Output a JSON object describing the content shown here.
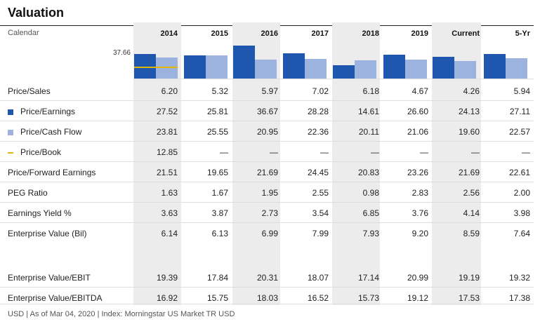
{
  "title": "Valuation",
  "calendar_label": "Calendar",
  "columns": [
    "2014",
    "2015",
    "2016",
    "2017",
    "2018",
    "2019",
    "Current",
    "5-Yr"
  ],
  "chart_max_label": "37.66",
  "colors": {
    "pe": "#1f56ae",
    "pcf": "#9db3df",
    "pb": "#e3b400",
    "shade": "#ececec"
  },
  "chart_data": {
    "type": "bar",
    "categories": [
      "2014",
      "2015",
      "2016",
      "2017",
      "2018",
      "2019",
      "Current",
      "5-Yr"
    ],
    "ymax": 37.66,
    "series": [
      {
        "name": "Price/Earnings",
        "values": [
          27.52,
          25.81,
          36.67,
          28.28,
          14.61,
          26.6,
          24.13,
          27.11
        ]
      },
      {
        "name": "Price/Cash Flow",
        "values": [
          23.81,
          25.55,
          20.95,
          22.36,
          20.11,
          21.06,
          19.6,
          22.57
        ]
      },
      {
        "name": "Price/Book",
        "values": [
          12.85,
          null,
          null,
          null,
          null,
          null,
          null,
          null
        ]
      }
    ]
  },
  "rows": [
    {
      "label": "Price/Sales",
      "legend": "",
      "values": [
        "6.20",
        "5.32",
        "5.97",
        "7.02",
        "6.18",
        "4.67",
        "4.26",
        "5.94"
      ]
    },
    {
      "label": "Price/Earnings",
      "legend": "pe",
      "values": [
        "27.52",
        "25.81",
        "36.67",
        "28.28",
        "14.61",
        "26.60",
        "24.13",
        "27.11"
      ]
    },
    {
      "label": "Price/Cash Flow",
      "legend": "pcf",
      "values": [
        "23.81",
        "25.55",
        "20.95",
        "22.36",
        "20.11",
        "21.06",
        "19.60",
        "22.57"
      ]
    },
    {
      "label": "Price/Book",
      "legend": "pb",
      "values": [
        "12.85",
        "—",
        "—",
        "—",
        "—",
        "—",
        "—",
        "—"
      ]
    },
    {
      "label": "Price/Forward Earnings",
      "legend": "",
      "values": [
        "21.51",
        "19.65",
        "21.69",
        "24.45",
        "20.83",
        "23.26",
        "21.69",
        "22.61"
      ]
    },
    {
      "label": "PEG Ratio",
      "legend": "",
      "values": [
        "1.63",
        "1.67",
        "1.95",
        "2.55",
        "0.98",
        "2.83",
        "2.56",
        "2.00"
      ]
    },
    {
      "label": "Earnings Yield %",
      "legend": "",
      "values": [
        "3.63",
        "3.87",
        "2.73",
        "3.54",
        "6.85",
        "3.76",
        "4.14",
        "3.98"
      ]
    },
    {
      "label": "Enterprise Value (Bil)",
      "legend": "",
      "values": [
        "6.14",
        "6.13",
        "6.99",
        "7.99",
        "7.93",
        "9.20",
        "8.59",
        "7.64"
      ]
    },
    {
      "label": "Enterprise Value/EBIT",
      "legend": "",
      "values": [
        "19.39",
        "17.84",
        "20.31",
        "18.07",
        "17.14",
        "20.99",
        "19.19",
        "19.32"
      ]
    },
    {
      "label": "Enterprise Value/EBITDA",
      "legend": "",
      "values": [
        "16.92",
        "15.75",
        "18.03",
        "16.52",
        "15.73",
        "19.12",
        "17.53",
        "17.38"
      ]
    }
  ],
  "footer": "USD | As of Mar 04, 2020 | Index: Morningstar US Market TR USD"
}
